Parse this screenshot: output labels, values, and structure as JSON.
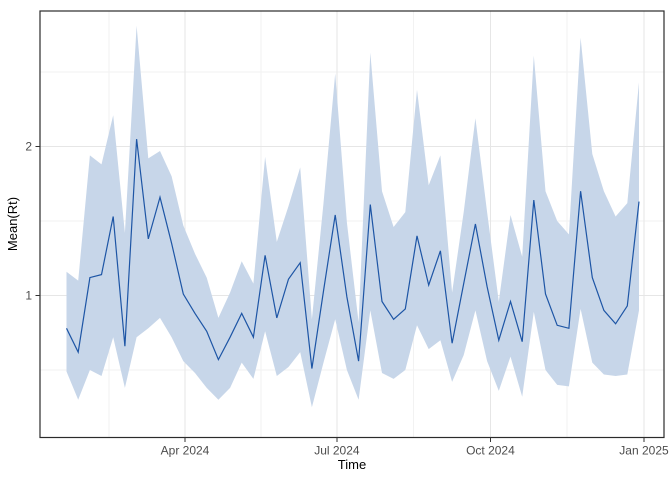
{
  "chart_data": {
    "type": "line",
    "title": "",
    "xlabel": "Time",
    "ylabel": "Mean(Rt)",
    "legend": false,
    "grid": true,
    "series_name": "mean_rt_with_interval",
    "x_unit": "days since 2024-01-01",
    "x_ticks": [
      {
        "label": "Apr 2024",
        "day": 91
      },
      {
        "label": "Jul 2024",
        "day": 182
      },
      {
        "label": "Oct 2024",
        "day": 274
      },
      {
        "label": "Jan 2025",
        "day": 366
      }
    ],
    "x_minor_days": [
      45.5,
      136.5,
      228,
      320
    ],
    "y_ticks": [
      {
        "label": "1",
        "value": 1
      },
      {
        "label": "2",
        "value": 2
      }
    ],
    "y_minor": [
      0.5,
      1.5,
      2.5
    ],
    "ylim": [
      -0.06,
      2.95
    ],
    "xlim_days": [
      4,
      378
    ],
    "colors": {
      "line": "#1d55a5",
      "ribbon": "#c7d6e9",
      "grid_major": "#e6e6e6",
      "grid_minor": "#f2f2f2",
      "panel_border": "#2b2b2b",
      "tick_mark": "#333333",
      "tick_text": "#4d4d4d",
      "background": "#ffffff"
    },
    "days": [
      20,
      27,
      34,
      41,
      48,
      55,
      62,
      69,
      76,
      83,
      90,
      97,
      104,
      111,
      118,
      125,
      132,
      139,
      146,
      153,
      160,
      167,
      174,
      181,
      188,
      195,
      202,
      209,
      216,
      223,
      230,
      237,
      244,
      251,
      258,
      265,
      272,
      279,
      286,
      293,
      300,
      307,
      314,
      321,
      328,
      335,
      342,
      349,
      356,
      363
    ],
    "mean": [
      0.78,
      0.62,
      1.12,
      1.14,
      1.53,
      0.66,
      2.05,
      1.38,
      1.66,
      1.35,
      1.01,
      0.88,
      0.76,
      0.57,
      0.72,
      0.88,
      0.72,
      1.27,
      0.85,
      1.11,
      1.22,
      0.51,
      1.03,
      1.54,
      0.99,
      0.56,
      1.61,
      0.96,
      0.84,
      0.91,
      1.4,
      1.07,
      1.3,
      0.68,
      1.08,
      1.48,
      1.06,
      0.7,
      0.96,
      0.69,
      1.64,
      1.01,
      0.8,
      0.78,
      1.7,
      1.12,
      0.9,
      0.81,
      0.93,
      1.63
    ],
    "lower": [
      0.49,
      0.3,
      0.5,
      0.46,
      0.72,
      0.38,
      0.72,
      0.78,
      0.85,
      0.72,
      0.56,
      0.48,
      0.38,
      0.3,
      0.38,
      0.55,
      0.44,
      0.76,
      0.46,
      0.52,
      0.62,
      0.25,
      0.55,
      0.84,
      0.5,
      0.3,
      0.9,
      0.48,
      0.44,
      0.5,
      0.8,
      0.64,
      0.7,
      0.42,
      0.6,
      0.9,
      0.56,
      0.36,
      0.59,
      0.32,
      0.89,
      0.5,
      0.4,
      0.39,
      0.91,
      0.55,
      0.47,
      0.46,
      0.47,
      0.9
    ],
    "upper": [
      1.16,
      1.1,
      1.94,
      1.88,
      2.21,
      1.42,
      2.81,
      1.92,
      1.97,
      1.8,
      1.47,
      1.28,
      1.12,
      0.85,
      1.02,
      1.23,
      1.08,
      1.93,
      1.36,
      1.6,
      1.86,
      0.84,
      1.62,
      2.49,
      1.49,
      0.82,
      2.63,
      1.7,
      1.46,
      1.56,
      2.38,
      1.74,
      1.94,
      1.02,
      1.56,
      2.19,
      1.56,
      0.96,
      1.54,
      1.26,
      2.61,
      1.7,
      1.5,
      1.41,
      2.73,
      1.95,
      1.7,
      1.53,
      1.62,
      2.43
    ]
  }
}
